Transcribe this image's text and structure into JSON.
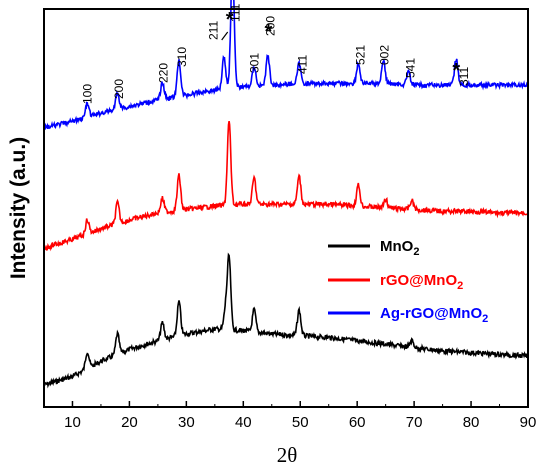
{
  "chart_data": {
    "type": "line",
    "xlabel": "2θ",
    "ylabel": "Intensity (a.u.)",
    "xlim": [
      5,
      90
    ],
    "xticks": [
      "10",
      "20",
      "30",
      "40",
      "50",
      "60",
      "70",
      "80",
      "90"
    ],
    "yticks_visible": false,
    "legend": {
      "position": "right-center",
      "entries": [
        {
          "label": "MnO",
          "sub": "2",
          "color": "#000000"
        },
        {
          "label": "rGO@MnO",
          "sub": "2",
          "color": "#ff0000"
        },
        {
          "label": "Ag-rGO@MnO",
          "sub": "2",
          "color": "#0000ff"
        }
      ]
    },
    "series": [
      {
        "name": "MnO2",
        "color": "#000000",
        "profile": [
          [
            5,
            0.0
          ],
          [
            10,
            0.05
          ],
          [
            15,
            0.14
          ],
          [
            20,
            0.21
          ],
          [
            25,
            0.26
          ],
          [
            30,
            0.3
          ],
          [
            35,
            0.33
          ],
          [
            40,
            0.32
          ],
          [
            45,
            0.3
          ],
          [
            50,
            0.29
          ],
          [
            55,
            0.28
          ],
          [
            60,
            0.26
          ],
          [
            65,
            0.24
          ],
          [
            70,
            0.22
          ],
          [
            75,
            0.2
          ],
          [
            80,
            0.19
          ],
          [
            85,
            0.18
          ],
          [
            90,
            0.17
          ]
        ],
        "peaks": [
          [
            12.6,
            0.1
          ],
          [
            17.9,
            0.12
          ],
          [
            25.8,
            0.1
          ],
          [
            28.7,
            0.2
          ],
          [
            36.9,
            0.12
          ],
          [
            37.5,
            0.42
          ],
          [
            41.9,
            0.13
          ],
          [
            49.8,
            0.15
          ],
          [
            69.6,
            0.04
          ]
        ]
      },
      {
        "name": "rGO@MnO2",
        "color": "#ff0000",
        "profile": [
          [
            5,
            0.0
          ],
          [
            10,
            0.05
          ],
          [
            15,
            0.11
          ],
          [
            20,
            0.16
          ],
          [
            25,
            0.2
          ],
          [
            30,
            0.22
          ],
          [
            35,
            0.24
          ],
          [
            40,
            0.25
          ],
          [
            45,
            0.25
          ],
          [
            50,
            0.25
          ],
          [
            55,
            0.25
          ],
          [
            60,
            0.24
          ],
          [
            65,
            0.23
          ],
          [
            70,
            0.22
          ],
          [
            75,
            0.21
          ],
          [
            80,
            0.21
          ],
          [
            85,
            0.2
          ],
          [
            90,
            0.2
          ]
        ],
        "peaks": [
          [
            12.6,
            0.08
          ],
          [
            17.9,
            0.12
          ],
          [
            25.8,
            0.08
          ],
          [
            28.7,
            0.2
          ],
          [
            37.5,
            0.48
          ],
          [
            41.9,
            0.15
          ],
          [
            49.8,
            0.16
          ],
          [
            60.2,
            0.12
          ],
          [
            65.0,
            0.05
          ],
          [
            69.6,
            0.05
          ]
        ]
      },
      {
        "name": "Ag-rGO@MnO2",
        "color": "#0000ff",
        "profile": [
          [
            5,
            0.0
          ],
          [
            10,
            0.04
          ],
          [
            15,
            0.09
          ],
          [
            20,
            0.13
          ],
          [
            25,
            0.17
          ],
          [
            30,
            0.2
          ],
          [
            35,
            0.23
          ],
          [
            40,
            0.25
          ],
          [
            45,
            0.26
          ],
          [
            50,
            0.27
          ],
          [
            55,
            0.27
          ],
          [
            60,
            0.27
          ],
          [
            65,
            0.27
          ],
          [
            70,
            0.26
          ],
          [
            75,
            0.26
          ],
          [
            80,
            0.26
          ],
          [
            85,
            0.26
          ],
          [
            90,
            0.26
          ]
        ],
        "peaks": [
          [
            12.6,
            0.08
          ],
          [
            17.9,
            0.1
          ],
          [
            25.8,
            0.1
          ],
          [
            28.7,
            0.22
          ],
          [
            36.6,
            0.2
          ],
          [
            38.1,
            0.75
          ],
          [
            41.9,
            0.12
          ],
          [
            44.3,
            0.18
          ],
          [
            49.8,
            0.12
          ],
          [
            60.2,
            0.12
          ],
          [
            64.6,
            0.14
          ],
          [
            69.0,
            0.08
          ],
          [
            77.4,
            0.16
          ]
        ]
      }
    ],
    "annotations": [
      {
        "text": "100",
        "x": 12.6
      },
      {
        "text": "200",
        "x": 18.2
      },
      {
        "text": "220",
        "x": 26.0
      },
      {
        "text": "310",
        "x": 29.2
      },
      {
        "text": "211",
        "x": 34.8
      },
      {
        "text": "*",
        "x": 37.6
      },
      {
        "text": "111",
        "x": 38.6
      },
      {
        "text": "301",
        "x": 42.0
      },
      {
        "text": "*",
        "x": 44.4
      },
      {
        "text": "200",
        "x": 44.8
      },
      {
        "text": "411",
        "x": 50.4
      },
      {
        "text": "521",
        "x": 60.6
      },
      {
        "text": "002",
        "x": 64.8
      },
      {
        "text": "541",
        "x": 69.4
      },
      {
        "text": "*",
        "x": 77.4
      },
      {
        "text": "311",
        "x": 78.8
      }
    ]
  }
}
